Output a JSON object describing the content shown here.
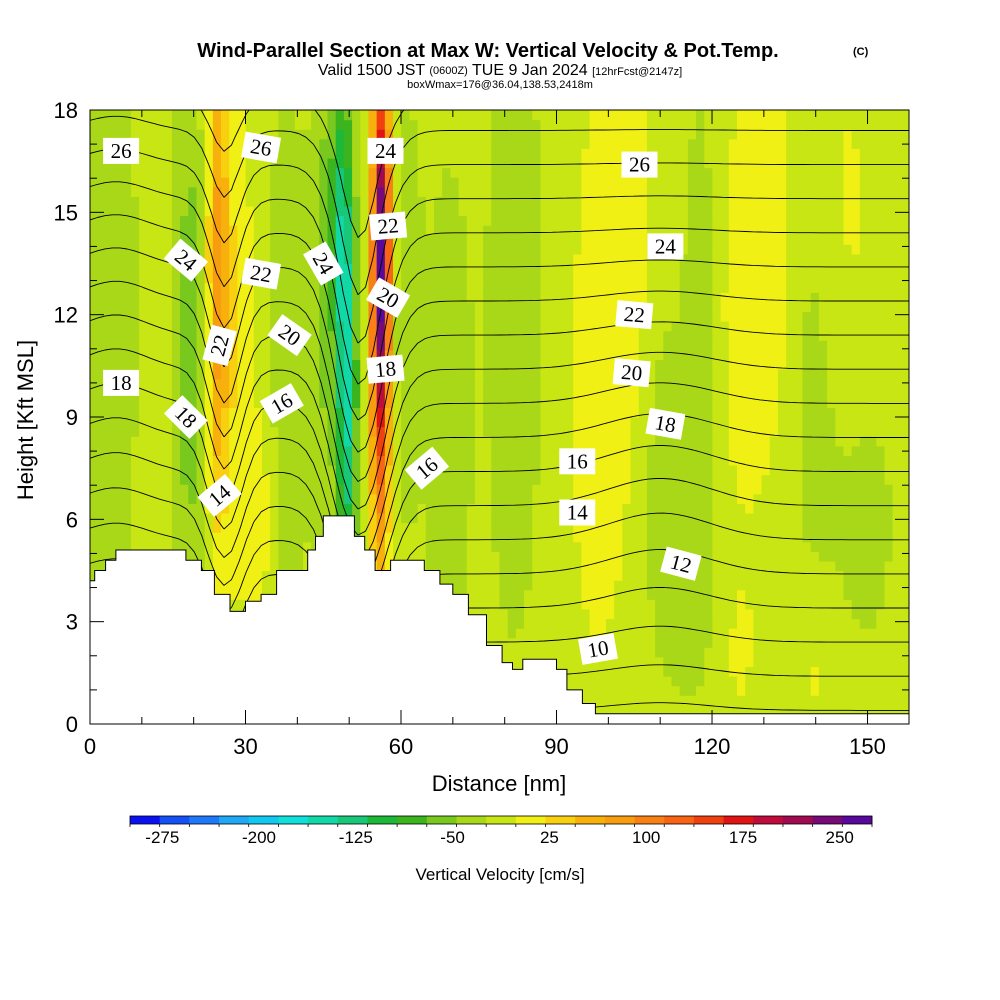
{
  "title": {
    "main": "Wind-Parallel Section at Max W: Vertical Velocity & Pot.Temp.",
    "copyright": "(C)",
    "valid_prefix": "Valid 1500 JST",
    "valid_utc": "(0600Z)",
    "valid_date": "TUE 9 Jan 2024",
    "forecast": "[12hrFcst@2147z]",
    "box": "boxWmax=176@36.04,138.53,2418m"
  },
  "chart_data": {
    "type": "heatmap",
    "xlabel": "Distance [nm]",
    "ylabel": "Height [Kft MSL]",
    "xlim": [
      0,
      158
    ],
    "ylim": [
      0,
      18
    ],
    "x_ticks": [
      "0",
      "30",
      "60",
      "90",
      "120",
      "150"
    ],
    "x_tick_values": [
      0,
      30,
      60,
      90,
      120,
      150
    ],
    "y_ticks": [
      "0",
      "3",
      "6",
      "9",
      "12",
      "15",
      "18"
    ],
    "y_tick_values": [
      0,
      3,
      6,
      9,
      12,
      15,
      18
    ],
    "colorbar": {
      "title": "Vertical Velocity [cm/s]",
      "labels": [
        "-275",
        "-200",
        "-125",
        "-50",
        "25",
        "100",
        "175",
        "250"
      ],
      "label_values": [
        -275,
        -200,
        -125,
        -50,
        25,
        100,
        175,
        250
      ],
      "min": -300,
      "max": 275,
      "step": 25,
      "colors": [
        "#0a10f0",
        "#1450f5",
        "#1e78f8",
        "#1ea8f5",
        "#10c8f0",
        "#10e0dc",
        "#12d8a8",
        "#18c878",
        "#1eb838",
        "#3cb41e",
        "#78c81e",
        "#a8d818",
        "#c8e614",
        "#f0f014",
        "#f8d010",
        "#f8b00c",
        "#f89c10",
        "#f88014",
        "#f86414",
        "#f04010",
        "#e01414",
        "#c00c3c",
        "#a00a50",
        "#780a78",
        "#58089a"
      ]
    },
    "terrain": [
      [
        0,
        4.2
      ],
      [
        0.9,
        4.2
      ],
      [
        0.9,
        4.5
      ],
      [
        3,
        4.5
      ],
      [
        3,
        4.8
      ],
      [
        5,
        4.8
      ],
      [
        5,
        5.1
      ],
      [
        18.5,
        5.1
      ],
      [
        18.5,
        4.8
      ],
      [
        21.5,
        4.8
      ],
      [
        21.5,
        4.5
      ],
      [
        24,
        4.5
      ],
      [
        24,
        3.8
      ],
      [
        27,
        3.8
      ],
      [
        27,
        3.3
      ],
      [
        30,
        3.3
      ],
      [
        30,
        3.6
      ],
      [
        33,
        3.6
      ],
      [
        33,
        3.8
      ],
      [
        36,
        3.8
      ],
      [
        36,
        4.5
      ],
      [
        42,
        4.5
      ],
      [
        42,
        5.1
      ],
      [
        43.5,
        5.1
      ],
      [
        43.5,
        5.5
      ],
      [
        45,
        5.5
      ],
      [
        45,
        6.1
      ],
      [
        51,
        6.1
      ],
      [
        51,
        5.5
      ],
      [
        53,
        5.5
      ],
      [
        53,
        5.1
      ],
      [
        55,
        5.1
      ],
      [
        55,
        4.5
      ],
      [
        58,
        4.5
      ],
      [
        58,
        4.8
      ],
      [
        64.5,
        4.8
      ],
      [
        64.5,
        4.5
      ],
      [
        67.5,
        4.5
      ],
      [
        67.5,
        4.1
      ],
      [
        70,
        4.1
      ],
      [
        70,
        3.8
      ],
      [
        73,
        3.8
      ],
      [
        73,
        3.2
      ],
      [
        76.5,
        3.2
      ],
      [
        76.5,
        2.3
      ],
      [
        79.5,
        2.3
      ],
      [
        79.5,
        1.8
      ],
      [
        81.5,
        1.8
      ],
      [
        81.5,
        1.6
      ],
      [
        83.5,
        1.6
      ],
      [
        83.5,
        1.9
      ],
      [
        90,
        1.9
      ],
      [
        90,
        1.6
      ],
      [
        92,
        1.6
      ],
      [
        92,
        1
      ],
      [
        95,
        1
      ],
      [
        95,
        0.6
      ],
      [
        97.5,
        0.6
      ],
      [
        97.5,
        0.3
      ],
      [
        158,
        0.3
      ],
      [
        158,
        0
      ]
    ],
    "w_field": {
      "base": 10,
      "features": [
        {
          "x": 4,
          "y": 12,
          "sx": 3.5,
          "sy": 7,
          "amp": -28
        },
        {
          "x": 19.5,
          "y": 11,
          "sx": 2.4,
          "sy": 5,
          "amp": -55
        },
        {
          "x": 24.5,
          "y": 13,
          "sx": 1.5,
          "sy": 5.5,
          "amp": 95
        },
        {
          "x": 28,
          "y": 12,
          "sx": 2.5,
          "sy": 5,
          "amp": 35
        },
        {
          "x": 33,
          "y": 6,
          "sx": 3,
          "sy": 2.5,
          "amp": 25
        },
        {
          "x": 38,
          "y": 9.5,
          "sx": 2.2,
          "sy": 6,
          "amp": -38
        },
        {
          "x": 45,
          "y": 13,
          "sx": 1.8,
          "sy": 6,
          "amp": -40
        },
        {
          "x": 49.5,
          "y": 10,
          "sx": 1.4,
          "sy": 5,
          "amp": -145
        },
        {
          "x": 48,
          "y": 15,
          "sx": 1.2,
          "sy": 3,
          "amp": -70
        },
        {
          "x": 56,
          "y": 12,
          "sx": 1.3,
          "sy": 5,
          "amp": 220
        },
        {
          "x": 56.5,
          "y": 14.5,
          "sx": 1,
          "sy": 3,
          "amp": 120
        },
        {
          "x": 61,
          "y": 12,
          "sx": 2,
          "sy": 4,
          "amp": -32
        },
        {
          "x": 69,
          "y": 9,
          "sx": 3,
          "sy": 5,
          "amp": -28
        },
        {
          "x": 82,
          "y": 12,
          "sx": 4,
          "sy": 7,
          "amp": -25
        },
        {
          "x": 98,
          "y": 8,
          "sx": 5,
          "sy": 6,
          "amp": 22
        },
        {
          "x": 103,
          "y": 15,
          "sx": 5,
          "sy": 5,
          "amp": 28
        },
        {
          "x": 110,
          "y": 9,
          "sx": 3,
          "sy": 4,
          "amp": -20
        },
        {
          "x": 118,
          "y": 12,
          "sx": 2.5,
          "sy": 5,
          "amp": -25
        },
        {
          "x": 126,
          "y": 12,
          "sx": 4,
          "sy": 5,
          "amp": 30
        },
        {
          "x": 132,
          "y": 14,
          "sx": 3,
          "sy": 4,
          "amp": 25
        },
        {
          "x": 140,
          "y": 10,
          "sx": 4,
          "sy": 5,
          "amp": -18
        },
        {
          "x": 146,
          "y": 15,
          "sx": 4,
          "sy": 4,
          "amp": 20
        },
        {
          "x": 150,
          "y": 6,
          "sx": 4,
          "sy": 3,
          "amp": -18
        },
        {
          "x": 116,
          "y": 4,
          "sx": 6,
          "sy": 3,
          "amp": -15
        },
        {
          "x": 125,
          "y": 2,
          "sx": 3,
          "sy": 2,
          "amp": 18
        },
        {
          "x": 140,
          "y": 1.5,
          "sx": 3,
          "sy": 1.5,
          "amp": 20
        }
      ]
    },
    "theta_field": {
      "base": 8.6,
      "gradient": 1.0,
      "bumps": [
        {
          "x": 52,
          "y": 9,
          "sx": 4.5,
          "sy": 7,
          "amp": 5.5
        },
        {
          "x": 26,
          "y": 9,
          "sx": 3,
          "sy": 7,
          "amp": 3
        },
        {
          "x": 110,
          "y": 7,
          "sx": 10,
          "sy": 4,
          "amp": -0.8
        },
        {
          "x": 5,
          "y": 11,
          "sx": 6,
          "sy": 8,
          "amp": -0.6
        }
      ]
    },
    "theta_levels": [
      9,
      10,
      11,
      12,
      13,
      14,
      15,
      16,
      17,
      18,
      19,
      20,
      21,
      22,
      23,
      24,
      25,
      26,
      27
    ],
    "contour_labels": [
      {
        "text": "26",
        "x": 6,
        "y": 16.8,
        "rot": 0
      },
      {
        "text": "26",
        "x": 33,
        "y": 16.9,
        "rot": 10
      },
      {
        "text": "24",
        "x": 57,
        "y": 16.8,
        "rot": 0
      },
      {
        "text": "26",
        "x": 106,
        "y": 16.4,
        "rot": 0
      },
      {
        "text": "24",
        "x": 18.5,
        "y": 13.6,
        "rot": 40
      },
      {
        "text": "22",
        "x": 33,
        "y": 13.2,
        "rot": 10
      },
      {
        "text": "24",
        "x": 45,
        "y": 13.5,
        "rot": 60
      },
      {
        "text": "22",
        "x": 57.5,
        "y": 14.6,
        "rot": -5
      },
      {
        "text": "24",
        "x": 111,
        "y": 14,
        "rot": 0
      },
      {
        "text": "20",
        "x": 57.5,
        "y": 12.5,
        "rot": 30
      },
      {
        "text": "20",
        "x": 38.5,
        "y": 11.4,
        "rot": 35
      },
      {
        "text": "22",
        "x": 25,
        "y": 11.1,
        "rot": -75
      },
      {
        "text": "22",
        "x": 105,
        "y": 12,
        "rot": 5
      },
      {
        "text": "18",
        "x": 6,
        "y": 10,
        "rot": 0
      },
      {
        "text": "20",
        "x": 104.5,
        "y": 10.3,
        "rot": 5
      },
      {
        "text": "18",
        "x": 57,
        "y": 10.4,
        "rot": -5
      },
      {
        "text": "18",
        "x": 18.5,
        "y": 9,
        "rot": 45
      },
      {
        "text": "16",
        "x": 37,
        "y": 9.4,
        "rot": -30
      },
      {
        "text": "18",
        "x": 111,
        "y": 8.8,
        "rot": 10
      },
      {
        "text": "16",
        "x": 65,
        "y": 7.5,
        "rot": -40
      },
      {
        "text": "16",
        "x": 94,
        "y": 7.7,
        "rot": 0
      },
      {
        "text": "14",
        "x": 25,
        "y": 6.7,
        "rot": -40
      },
      {
        "text": "14",
        "x": 94,
        "y": 6.2,
        "rot": 0
      },
      {
        "text": "12",
        "x": 114,
        "y": 4.7,
        "rot": 15
      },
      {
        "text": "10",
        "x": 98,
        "y": 2.2,
        "rot": -10
      }
    ]
  }
}
